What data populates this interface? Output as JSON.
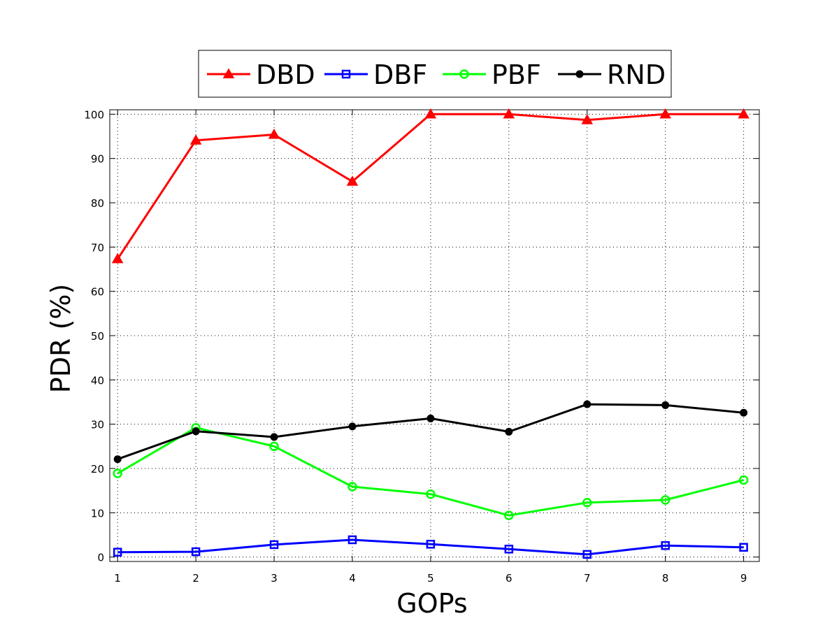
{
  "chart_data": {
    "type": "line",
    "xlabel": "GOPs",
    "ylabel": "PDR (%)",
    "x": [
      1,
      2,
      3,
      4,
      5,
      6,
      7,
      8,
      9
    ],
    "xlim": [
      0.9,
      9.2
    ],
    "ylim": [
      -1,
      101
    ],
    "xticks": [
      "1",
      "2",
      "3",
      "4",
      "5",
      "6",
      "7",
      "8",
      "9"
    ],
    "yticks": [
      "0",
      "10",
      "20",
      "30",
      "40",
      "50",
      "60",
      "70",
      "80",
      "90",
      "100"
    ],
    "grid": true,
    "legend_position": "top, outside plot, horizontal",
    "series": [
      {
        "name": "DBD",
        "color": "#ff0000",
        "marker": "triangle",
        "values": [
          67.3,
          94.1,
          95.4,
          84.8,
          100,
          100,
          98.7,
          100,
          100
        ]
      },
      {
        "name": "DBF",
        "color": "#0000ff",
        "marker": "square",
        "values": [
          1.1,
          1.2,
          2.8,
          3.9,
          2.9,
          1.8,
          0.6,
          2.6,
          2.2
        ]
      },
      {
        "name": "PBF",
        "color": "#00ff00",
        "marker": "circle",
        "values": [
          18.9,
          29.2,
          25.0,
          15.9,
          14.2,
          9.4,
          12.3,
          12.9,
          17.4
        ]
      },
      {
        "name": "RND",
        "color": "#000000",
        "marker": "dot",
        "values": [
          22.1,
          28.4,
          27.1,
          29.5,
          31.3,
          28.3,
          34.5,
          34.3,
          32.6
        ]
      }
    ]
  }
}
